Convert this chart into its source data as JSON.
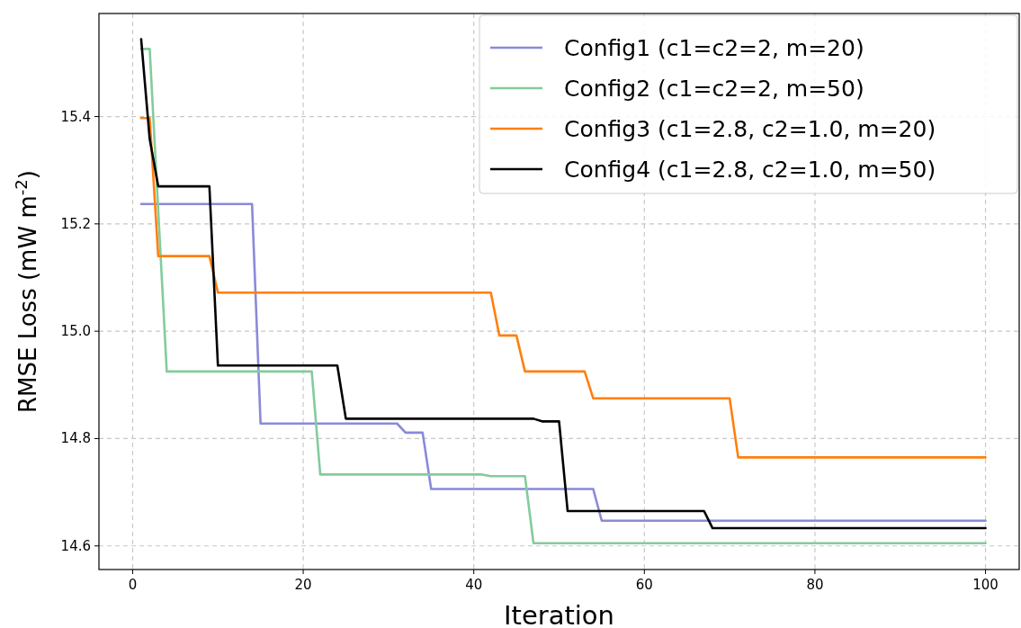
{
  "chart_data": {
    "type": "line",
    "xlabel": "Iteration",
    "ylabel": "RMSE Loss (mW m$^{-2}$)",
    "xlim": [
      -3.95,
      103.95
    ],
    "ylim": [
      14.556,
      15.592
    ],
    "xticks": [
      0,
      20,
      40,
      60,
      80,
      100
    ],
    "yticks": [
      {
        "value": 14.6,
        "label": "14.6"
      },
      {
        "value": 14.8,
        "label": "14.8"
      },
      {
        "value": 15.0,
        "label": "15.0"
      },
      {
        "value": 15.2,
        "label": "15.2"
      },
      {
        "value": 15.4,
        "label": "15.4"
      }
    ],
    "grid": true,
    "legend": "top right",
    "line_style": "solid",
    "series": [
      {
        "name": "Config1 (c1=c2=2, m=20)",
        "color": "#8a8ad9",
        "x": [
          1,
          14,
          15,
          31,
          32,
          34,
          35,
          54,
          55,
          100
        ],
        "values": [
          15.237,
          15.237,
          14.828,
          14.828,
          14.811,
          14.811,
          14.706,
          14.706,
          14.647,
          14.647
        ]
      },
      {
        "name": "Config2 (c1=c2=2, m=50)",
        "color": "#84cb9c",
        "x": [
          1,
          2,
          4,
          21,
          22,
          41,
          42,
          46,
          47,
          100
        ],
        "values": [
          15.526,
          15.526,
          14.925,
          14.925,
          14.733,
          14.733,
          14.73,
          14.73,
          14.605,
          14.605
        ]
      },
      {
        "name": "Config3 (c1=2.8, c2=1.0, m=20)",
        "color": "#ff7f0e",
        "x": [
          1,
          2,
          3,
          9,
          10,
          42,
          43,
          45,
          46,
          53,
          54,
          70,
          71,
          100
        ],
        "values": [
          15.397,
          15.397,
          15.14,
          15.14,
          15.072,
          15.072,
          14.992,
          14.992,
          14.925,
          14.925,
          14.875,
          14.875,
          14.765,
          14.765
        ]
      },
      {
        "name": "Config4 (c1=2.8, c2=1.0, m=50)",
        "color": "#000000",
        "x": [
          1,
          2,
          3,
          9,
          10,
          24,
          25,
          47,
          48,
          50,
          51,
          67,
          68,
          100
        ],
        "values": [
          15.544,
          15.358,
          15.27,
          15.27,
          14.936,
          14.936,
          14.837,
          14.837,
          14.832,
          14.832,
          14.665,
          14.665,
          14.633,
          14.633
        ]
      }
    ]
  }
}
